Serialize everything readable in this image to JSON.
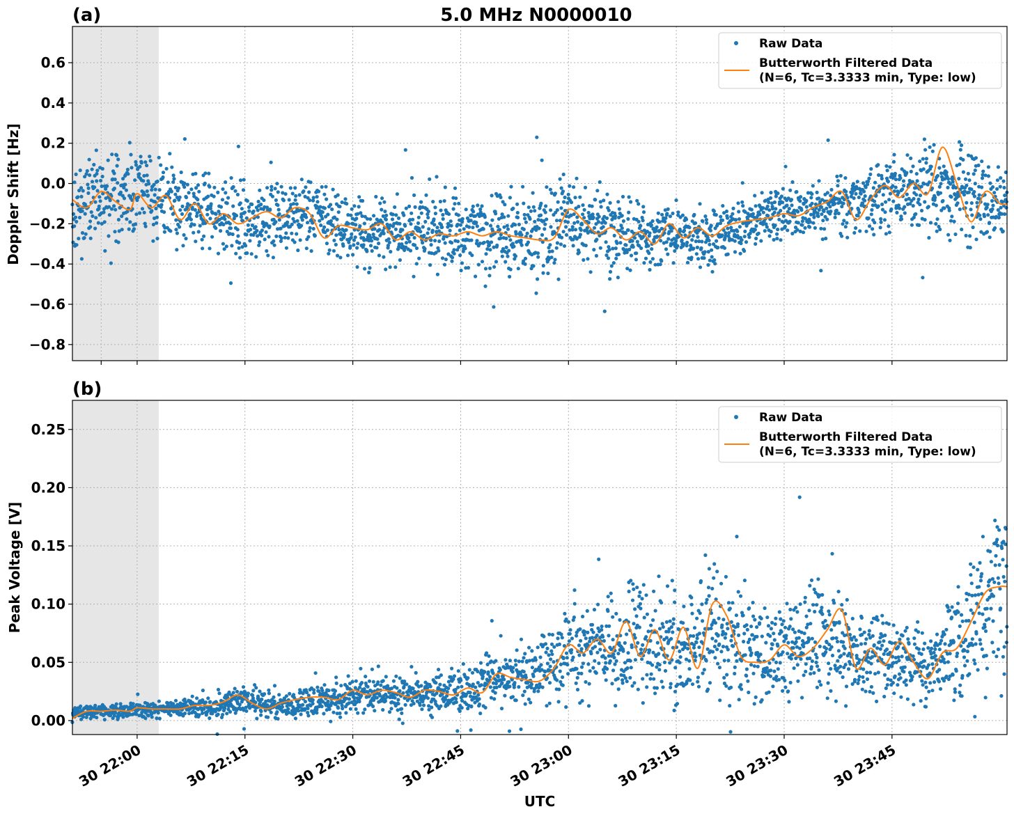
{
  "figure": {
    "title": "5.0 MHz N0000010",
    "xlabel": "UTC"
  },
  "colors": {
    "raw": "#1f77b4",
    "filtered": "#ff7f0e",
    "shade": "#e6e6e6",
    "grid": "#b0b0b0"
  },
  "chart_data": [
    {
      "type": "scatter",
      "panel_label": "(a)",
      "title": "5.0 MHz N0000010",
      "ylabel": "Doppler Shift [Hz]",
      "xlabel": "",
      "xlim": [
        "21:51",
        "00:01"
      ],
      "ylim": [
        -0.88,
        0.78
      ],
      "x_ticks": [
        "21:55",
        "22:00",
        "22:15",
        "22:30",
        "22:45",
        "23:00",
        "23:15",
        "23:30",
        "23:45"
      ],
      "x_tick_labels": [],
      "y_ticks": [
        0.6,
        0.4,
        0.2,
        0.0,
        -0.2,
        -0.4,
        -0.6,
        -0.8
      ],
      "y_tick_labels": [
        "0.6",
        "0.4",
        "0.2",
        "0.0",
        "−0.2",
        "−0.4",
        "−0.6",
        "−0.8"
      ],
      "shaded_region": [
        "21:51",
        "22:03"
      ],
      "grid": true,
      "legend": {
        "placement": "top-right",
        "entries": [
          "Raw Data",
          "Butterworth Filtered Data",
          "(N=6, Tc=3.3333 min, Type: low)"
        ]
      },
      "series": [
        {
          "name": "Raw Data",
          "kind": "points",
          "envelope": {
            "x": [
              "21:51",
              "21:55",
              "22:00",
              "22:05",
              "22:10",
              "22:15",
              "22:20",
              "22:25",
              "22:30",
              "22:35",
              "22:40",
              "22:45",
              "22:50",
              "22:55",
              "23:00",
              "23:05",
              "23:10",
              "23:15",
              "23:20",
              "23:25",
              "23:30",
              "23:35",
              "23:40",
              "23:45",
              "23:50",
              "23:55",
              "00:01"
            ],
            "center": [
              -0.12,
              -0.08,
              -0.04,
              -0.08,
              -0.15,
              -0.17,
              -0.16,
              -0.15,
              -0.24,
              -0.22,
              -0.23,
              -0.24,
              -0.25,
              -0.27,
              -0.17,
              -0.23,
              -0.27,
              -0.25,
              -0.26,
              -0.19,
              -0.15,
              -0.13,
              -0.09,
              -0.05,
              -0.02,
              -0.07,
              -0.1
            ],
            "spread": [
              0.13,
              0.13,
              0.13,
              0.12,
              0.11,
              0.11,
              0.11,
              0.1,
              0.1,
              0.1,
              0.11,
              0.12,
              0.12,
              0.13,
              0.14,
              0.11,
              0.09,
              0.09,
              0.09,
              0.08,
              0.07,
              0.08,
              0.1,
              0.11,
              0.13,
              0.13,
              0.12
            ]
          }
        },
        {
          "name": "Butterworth Filtered Data",
          "kind": "line",
          "x": [
            "21:51",
            "21:53",
            "21:55",
            "21:57",
            "21:59",
            "22:00",
            "22:02",
            "22:04",
            "22:06",
            "22:08",
            "22:10",
            "22:12",
            "22:14",
            "22:16",
            "22:18",
            "22:20",
            "22:22",
            "22:24",
            "22:26",
            "22:28",
            "22:30",
            "22:32",
            "22:34",
            "22:36",
            "22:38",
            "22:40",
            "22:42",
            "22:44",
            "22:46",
            "22:48",
            "22:50",
            "22:52",
            "22:54",
            "22:56",
            "22:58",
            "23:00",
            "23:02",
            "23:04",
            "23:06",
            "23:08",
            "23:10",
            "23:12",
            "23:14",
            "23:16",
            "23:18",
            "23:20",
            "23:22",
            "23:24",
            "23:26",
            "23:28",
            "23:30",
            "23:32",
            "23:34",
            "23:36",
            "23:38",
            "23:40",
            "23:42",
            "23:44",
            "23:46",
            "23:48",
            "23:50",
            "23:52",
            "23:54",
            "23:56",
            "23:58",
            "00:00",
            "00:01"
          ],
          "y": [
            -0.08,
            -0.12,
            -0.04,
            -0.09,
            -0.13,
            -0.05,
            -0.12,
            -0.06,
            -0.18,
            -0.1,
            -0.2,
            -0.15,
            -0.2,
            -0.17,
            -0.14,
            -0.17,
            -0.12,
            -0.15,
            -0.27,
            -0.21,
            -0.22,
            -0.23,
            -0.2,
            -0.28,
            -0.24,
            -0.28,
            -0.25,
            -0.26,
            -0.24,
            -0.26,
            -0.24,
            -0.26,
            -0.27,
            -0.28,
            -0.27,
            -0.13,
            -0.18,
            -0.25,
            -0.22,
            -0.28,
            -0.24,
            -0.3,
            -0.2,
            -0.27,
            -0.22,
            -0.26,
            -0.21,
            -0.19,
            -0.18,
            -0.17,
            -0.15,
            -0.16,
            -0.12,
            -0.09,
            -0.04,
            -0.18,
            -0.08,
            -0.01,
            -0.07,
            0.0,
            -0.05,
            0.18,
            0.0,
            -0.19,
            -0.04,
            -0.1,
            -0.1
          ]
        }
      ]
    },
    {
      "type": "scatter",
      "panel_label": "(b)",
      "title": "",
      "ylabel": "Peak Voltage [V]",
      "xlabel": "UTC",
      "xlim": [
        "21:51",
        "00:01"
      ],
      "ylim": [
        -0.012,
        0.275
      ],
      "x_ticks": [
        "22:00",
        "22:15",
        "22:30",
        "22:45",
        "23:00",
        "23:15",
        "23:30",
        "23:45"
      ],
      "x_tick_labels": [
        "30 22:00",
        "30 22:15",
        "30 22:30",
        "30 22:45",
        "30 23:00",
        "30 23:15",
        "30 23:30",
        "30 23:45"
      ],
      "y_ticks": [
        0.25,
        0.2,
        0.15,
        0.1,
        0.05,
        0.0
      ],
      "y_tick_labels": [
        "0.25",
        "0.20",
        "0.15",
        "0.10",
        "0.05",
        "0.00"
      ],
      "shaded_region": [
        "21:51",
        "22:03"
      ],
      "grid": true,
      "legend": {
        "placement": "top-right",
        "entries": [
          "Raw Data",
          "Butterworth Filtered Data",
          "(N=6, Tc=3.3333 min, Type: low)"
        ]
      },
      "series": [
        {
          "name": "Raw Data",
          "kind": "points",
          "envelope": {
            "x": [
              "21:51",
              "21:55",
              "22:00",
              "22:05",
              "22:10",
              "22:15",
              "22:20",
              "22:25",
              "22:30",
              "22:35",
              "22:40",
              "22:45",
              "22:50",
              "22:55",
              "23:00",
              "23:05",
              "23:10",
              "23:15",
              "23:20",
              "23:25",
              "23:30",
              "23:35",
              "23:40",
              "23:45",
              "23:50",
              "23:55",
              "00:01"
            ],
            "center": [
              0.007,
              0.008,
              0.009,
              0.01,
              0.012,
              0.018,
              0.012,
              0.017,
              0.022,
              0.022,
              0.023,
              0.025,
              0.035,
              0.038,
              0.06,
              0.065,
              0.07,
              0.065,
              0.08,
              0.055,
              0.06,
              0.075,
              0.06,
              0.055,
              0.045,
              0.07,
              0.11
            ],
            "spread": [
              0.003,
              0.004,
              0.004,
              0.004,
              0.006,
              0.008,
              0.006,
              0.008,
              0.01,
              0.009,
              0.01,
              0.012,
              0.015,
              0.015,
              0.025,
              0.028,
              0.03,
              0.03,
              0.035,
              0.025,
              0.025,
              0.03,
              0.025,
              0.02,
              0.018,
              0.03,
              0.06
            ]
          }
        },
        {
          "name": "Butterworth Filtered Data",
          "kind": "line",
          "x": [
            "21:51",
            "21:53",
            "21:55",
            "21:57",
            "21:59",
            "22:00",
            "22:02",
            "22:04",
            "22:06",
            "22:08",
            "22:10",
            "22:12",
            "22:14",
            "22:16",
            "22:18",
            "22:20",
            "22:22",
            "22:24",
            "22:26",
            "22:28",
            "22:30",
            "22:32",
            "22:34",
            "22:36",
            "22:38",
            "22:40",
            "22:42",
            "22:44",
            "22:46",
            "22:48",
            "22:50",
            "22:52",
            "22:54",
            "22:56",
            "22:58",
            "23:00",
            "23:02",
            "23:04",
            "23:06",
            "23:08",
            "23:10",
            "23:12",
            "23:14",
            "23:16",
            "23:18",
            "23:20",
            "23:22",
            "23:24",
            "23:26",
            "23:28",
            "23:30",
            "23:32",
            "23:34",
            "23:36",
            "23:38",
            "23:40",
            "23:42",
            "23:44",
            "23:46",
            "23:48",
            "23:50",
            "23:52",
            "23:54",
            "23:56",
            "23:58",
            "00:00",
            "00:01"
          ],
          "y": [
            0.002,
            0.008,
            0.008,
            0.009,
            0.008,
            0.011,
            0.01,
            0.01,
            0.01,
            0.013,
            0.013,
            0.016,
            0.022,
            0.015,
            0.01,
            0.015,
            0.018,
            0.02,
            0.02,
            0.018,
            0.026,
            0.022,
            0.026,
            0.024,
            0.02,
            0.026,
            0.025,
            0.022,
            0.028,
            0.024,
            0.04,
            0.037,
            0.035,
            0.034,
            0.045,
            0.065,
            0.058,
            0.07,
            0.058,
            0.085,
            0.055,
            0.078,
            0.052,
            0.08,
            0.045,
            0.1,
            0.09,
            0.055,
            0.05,
            0.052,
            0.065,
            0.055,
            0.062,
            0.078,
            0.095,
            0.045,
            0.062,
            0.048,
            0.068,
            0.05,
            0.036,
            0.058,
            0.062,
            0.085,
            0.11,
            0.115,
            0.115
          ]
        }
      ]
    }
  ]
}
